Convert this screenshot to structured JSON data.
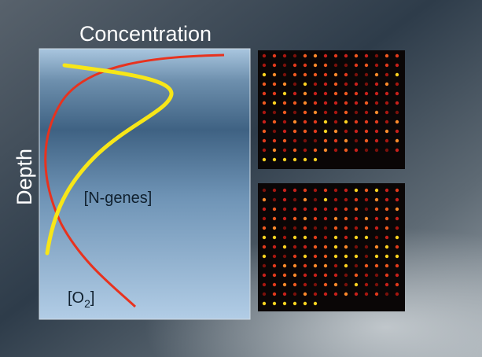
{
  "title": "Concentration",
  "y_label": "Depth",
  "curves": {
    "n_genes": "[N-genes]",
    "o2": {
      "prefix": "[O",
      "subscript": "2",
      "suffix": "]"
    }
  }
}
